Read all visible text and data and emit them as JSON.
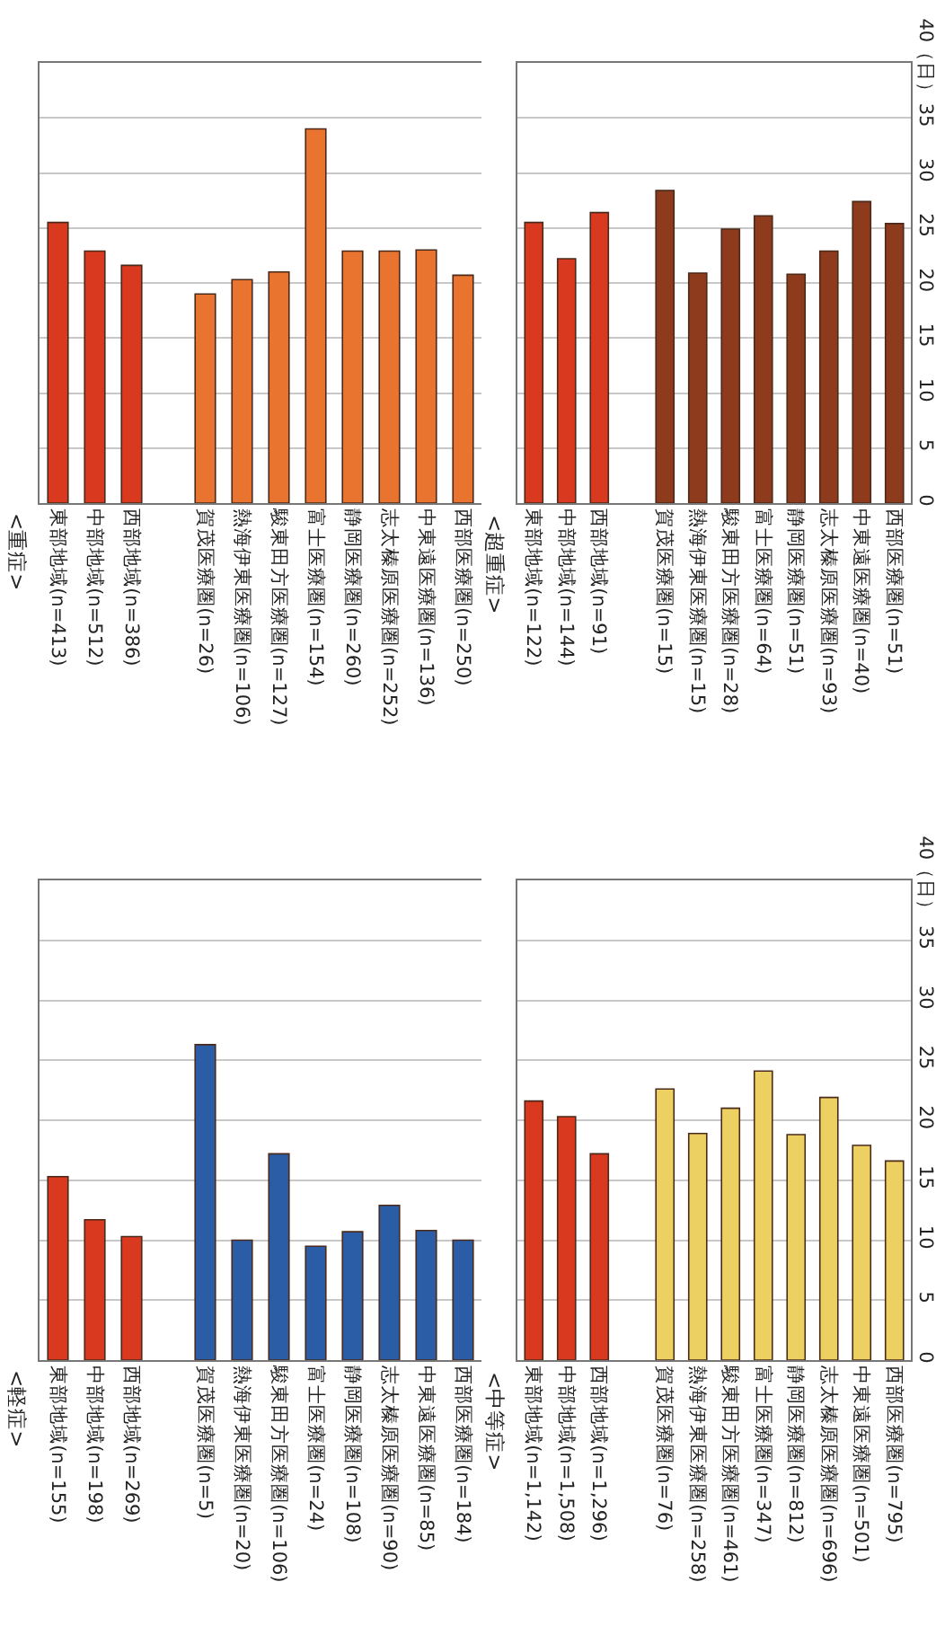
{
  "chart_data": [
    {
      "type": "bar",
      "title": "<重症>",
      "categories": [
        "東部地域(n=413)",
        "中部地域(n=512)",
        "西部地域(n=386)",
        null,
        "賀茂医療圏(n=26)",
        "熱海伊東医療圏(n=106)",
        "駿東田方医療圏(n=127)",
        "富士医療圏(n=154)",
        "静岡医療圏(n=260)",
        "志太榛原医療圏(n=252)",
        "中東遠医療圏(n=136)",
        "西部医療圏(n=250)"
      ],
      "values": [
        25.5,
        22.9,
        21.6,
        null,
        19.0,
        20.3,
        21.0,
        34.0,
        22.9,
        22.9,
        23.0,
        20.7
      ],
      "colors": [
        "#d8391f",
        "#d8391f",
        "#d8391f",
        null,
        "#e8742f",
        "#e8742f",
        "#e8742f",
        "#e8742f",
        "#e8742f",
        "#e8742f",
        "#e8742f",
        "#e8742f"
      ],
      "ylim": [
        0,
        40
      ],
      "yticks": [
        0,
        5,
        10,
        15,
        20,
        25,
        30,
        35,
        40
      ],
      "grid": "y",
      "tick_labels": "x"
    },
    {
      "type": "bar",
      "title": "<超重症>",
      "categories": [
        "東部地域(n=122)",
        "中部地域(n=144)",
        "西部地域(n=91)",
        null,
        "賀茂医療圏(n=15)",
        "熱海伊東医療圏(n=15)",
        "駿東田方医療圏(n=28)",
        "富士医療圏(n=64)",
        "静岡医療圏(n=51)",
        "志太榛原医療圏(n=93)",
        "中東遠医療圏(n=40)",
        "西部医療圏(n=51)"
      ],
      "values": [
        25.5,
        22.2,
        26.4,
        null,
        28.4,
        20.9,
        24.9,
        26.1,
        20.8,
        22.9,
        27.4,
        25.4
      ],
      "colors": [
        "#d8391f",
        "#d8391f",
        "#d8391f",
        null,
        "#8e3a1c",
        "#8e3a1c",
        "#8e3a1c",
        "#8e3a1c",
        "#8e3a1c",
        "#8e3a1c",
        "#8e3a1c",
        "#8e3a1c"
      ],
      "ylim": [
        0,
        40
      ],
      "yticks": [
        0,
        5,
        10,
        15,
        20,
        25,
        30,
        35,
        {
          "value": 40,
          "label": "40（日）"
        }
      ],
      "grid": "y"
    },
    {
      "type": "bar",
      "title": "<軽症>",
      "categories": [
        "東部地域(n=155)",
        "中部地域(n=198)",
        "西部地域(n=269)",
        null,
        "賀茂医療圏(n=5)",
        "熱海伊東医療圏(n=20)",
        "駿東田方医療圏(n=106)",
        "富士医療圏(n=24)",
        "静岡医療圏(n=108)",
        "志太榛原医療圏(n=90)",
        "中東遠医療圏(n=85)",
        "西部医療圏(n=184)"
      ],
      "values": [
        15.3,
        11.7,
        10.3,
        null,
        26.3,
        10.0,
        17.2,
        9.5,
        10.7,
        12.9,
        10.8,
        10.0
      ],
      "colors": [
        "#d8391f",
        "#d8391f",
        "#d8391f",
        null,
        "#2a5da6",
        "#2a5da6",
        "#2a5da6",
        "#2a5da6",
        "#2a5da6",
        "#2a5da6",
        "#2a5da6",
        "#2a5da6"
      ],
      "ylim": [
        0,
        40
      ],
      "yticks": [
        0,
        5,
        10,
        15,
        20,
        25,
        30,
        35,
        40
      ],
      "grid": "y",
      "tick_labels": "x"
    },
    {
      "type": "bar",
      "title": "<中等症>",
      "categories": [
        "東部地域(n=1,142)",
        "中部地域(n=1,508)",
        "西部地域(n=1,296)",
        null,
        "賀茂医療圏(n=76)",
        "熱海伊東医療圏(n=258)",
        "駿東田方医療圏(n=461)",
        "富士医療圏(n=347)",
        "静岡医療圏(n=812)",
        "志太榛原医療圏(n=696)",
        "中東遠医療圏(n=501)",
        "西部医療圏(n=795)"
      ],
      "values": [
        21.6,
        20.3,
        17.2,
        null,
        22.6,
        18.9,
        21.0,
        24.1,
        18.8,
        21.9,
        17.9,
        16.6
      ],
      "colors": [
        "#d8391f",
        "#d8391f",
        "#d8391f",
        null,
        "#ecd062",
        "#ecd062",
        "#ecd062",
        "#ecd062",
        "#ecd062",
        "#ecd062",
        "#ecd062",
        "#ecd062"
      ],
      "ylim": [
        0,
        40
      ],
      "yticks": [
        0,
        5,
        10,
        15,
        20,
        25,
        30,
        35,
        {
          "value": 40,
          "label": "40（日）"
        }
      ],
      "grid": "y"
    }
  ]
}
